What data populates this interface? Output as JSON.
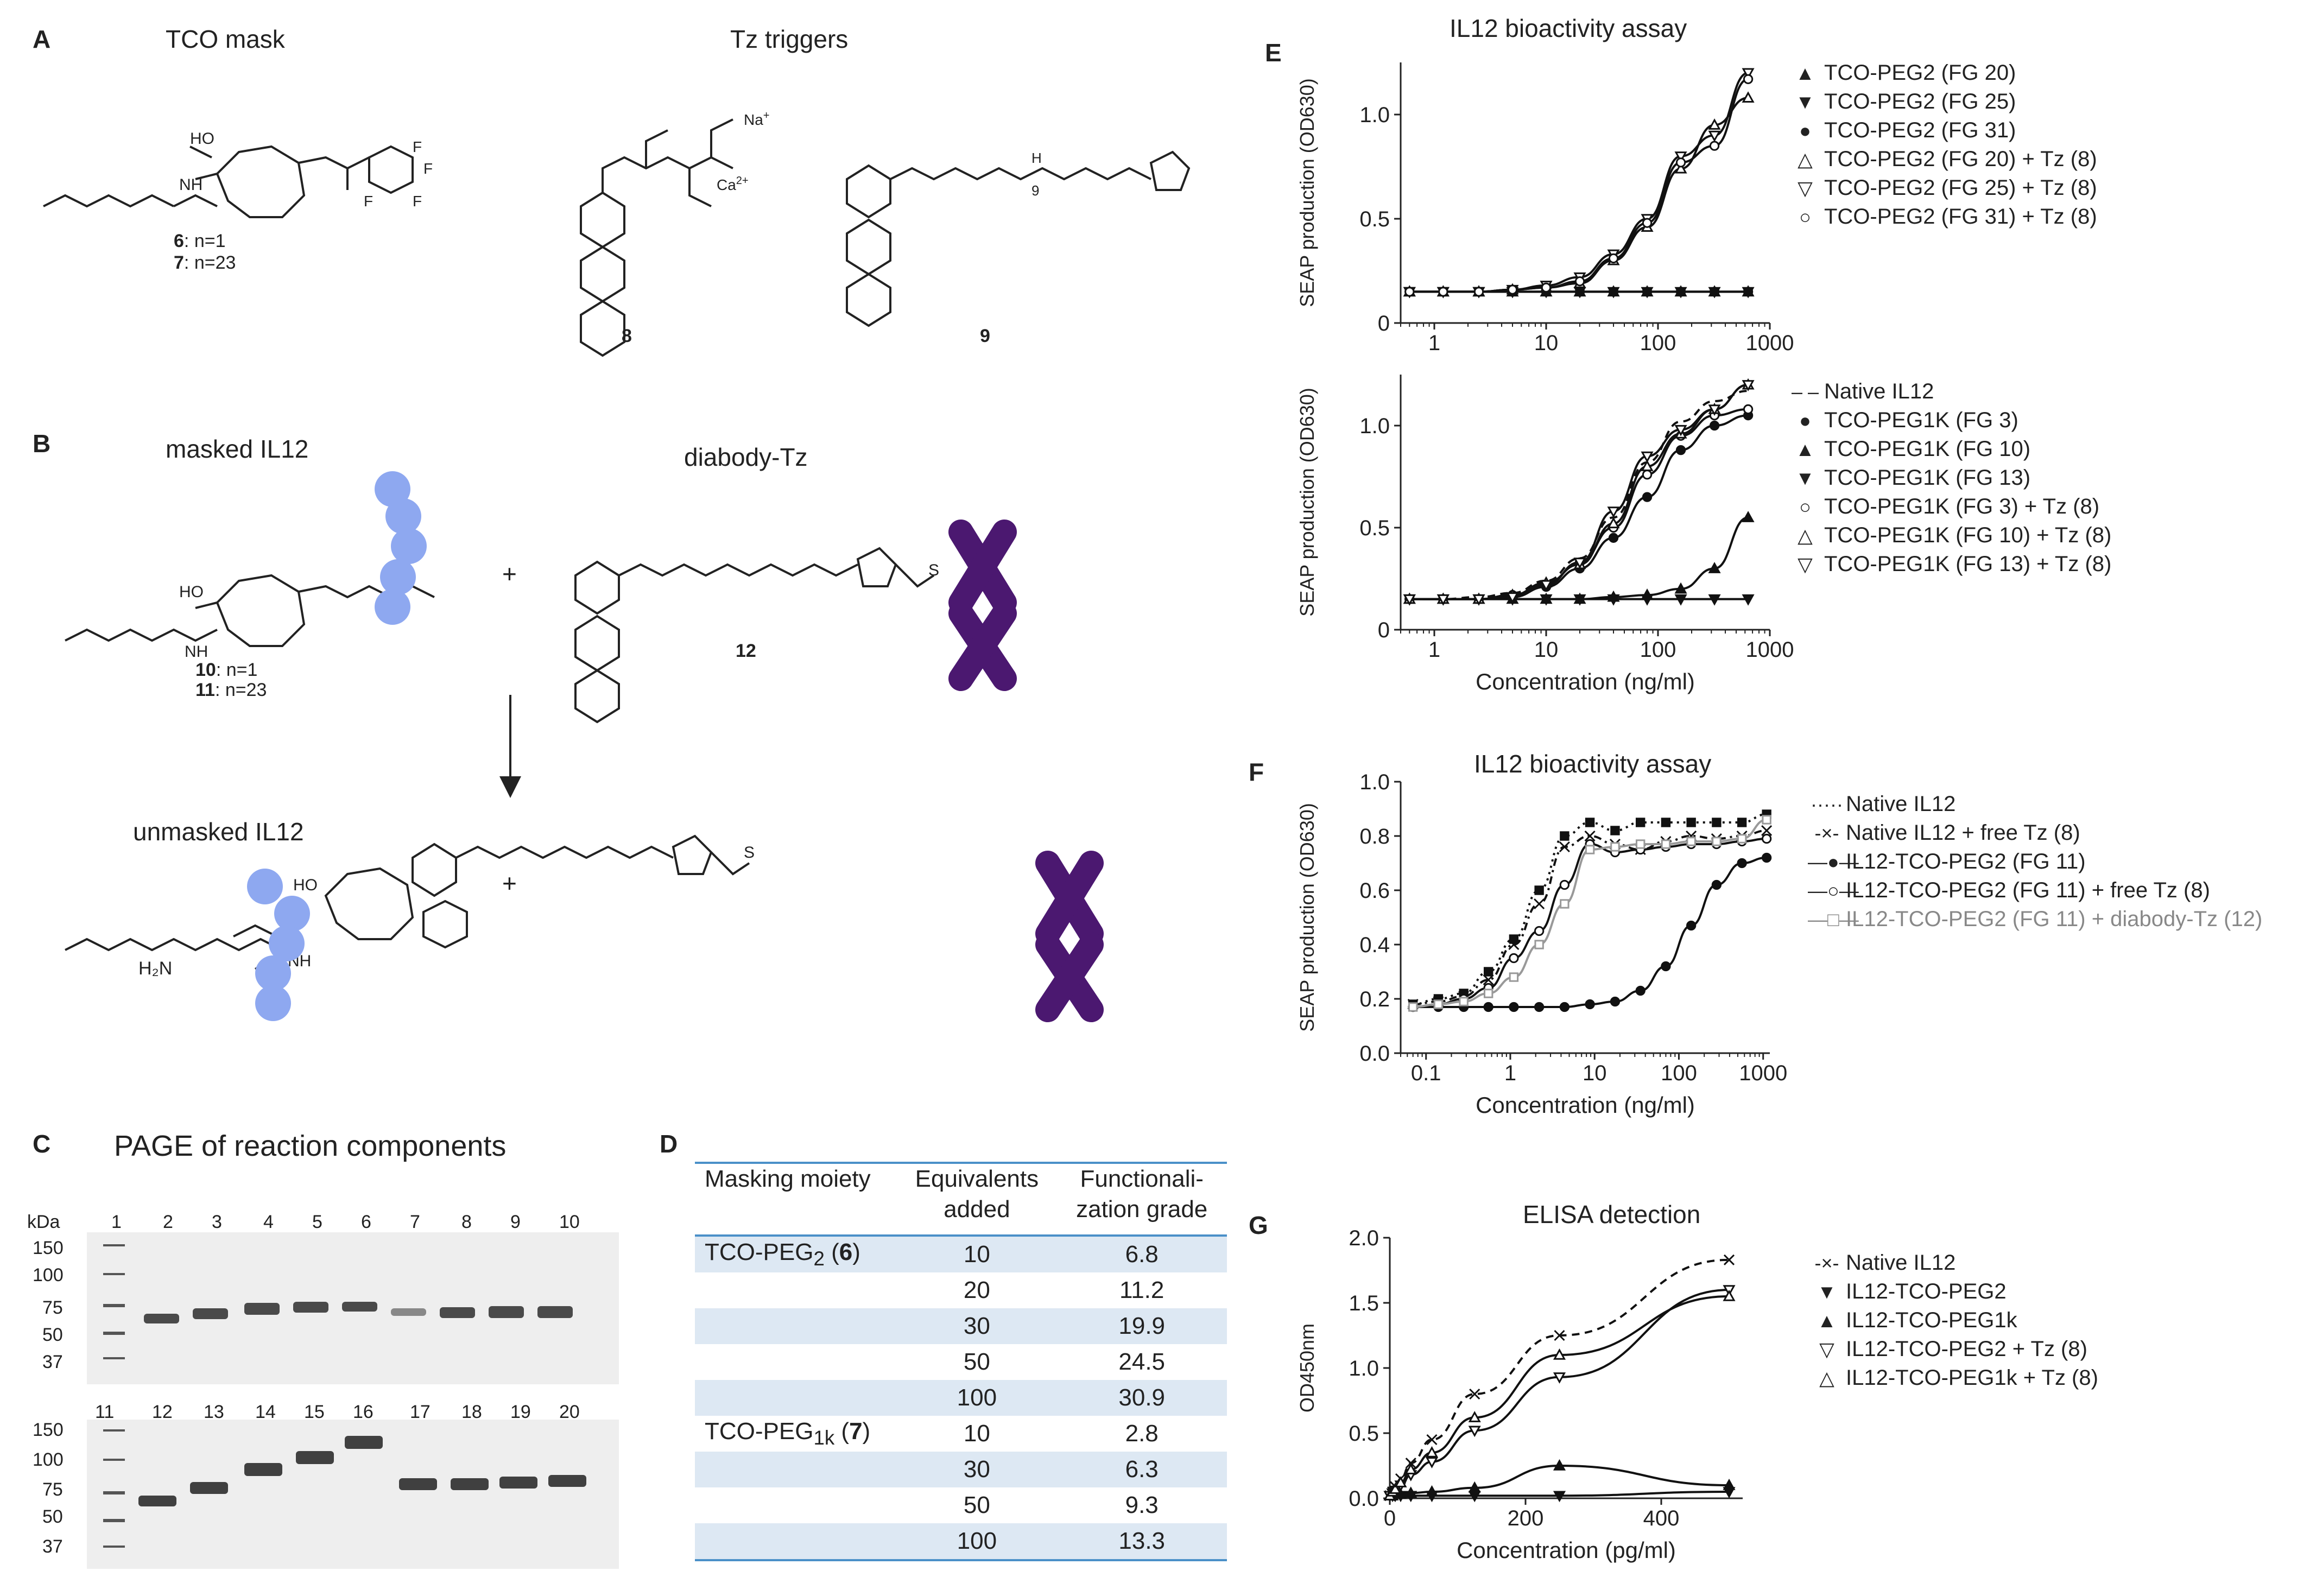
{
  "panels": {
    "A": "A",
    "B": "B",
    "C": "C",
    "D": "D",
    "E": "E",
    "F": "F",
    "G": "G"
  },
  "panelA": {
    "title1": "TCO mask",
    "title2": "Tz triggers",
    "compound1": "6",
    "compound1_n": ": n=1",
    "compound2": "7",
    "compound2_n": ": n=23",
    "compound8": "8",
    "compound9": "9",
    "na": "Na",
    "ca": "Ca"
  },
  "panelB": {
    "title_masked": "masked IL12",
    "title_diabody": "diabody-Tz",
    "title_unmasked": "unmasked IL12",
    "compound10": "10",
    "compound10_n": ": n=1",
    "compound11": "11",
    "compound11_n": ": n=23",
    "compound12": "12",
    "plus": "+",
    "h2n": "H₂N"
  },
  "panelC": {
    "title": "PAGE of reaction components",
    "kda": "kDa",
    "ladder_top": [
      "150",
      "100",
      "75",
      "50",
      "37"
    ],
    "ladder_bottom": [
      "150",
      "100",
      "75",
      "50",
      "37"
    ],
    "lanes_top": [
      "1",
      "2",
      "3",
      "4",
      "5",
      "6",
      "7",
      "8",
      "9",
      "10"
    ],
    "lanes_bottom": [
      "11",
      "12",
      "13",
      "14",
      "15",
      "16",
      "17",
      "18",
      "19",
      "20"
    ]
  },
  "panelD": {
    "headers": [
      "Masking moiety",
      "Equivalents added",
      "Functionali-zation grade"
    ],
    "rows": [
      {
        "moiety": "TCO-PEG2 (6)",
        "eq": "10",
        "fg": "6.8"
      },
      {
        "moiety": "",
        "eq": "20",
        "fg": "11.2"
      },
      {
        "moiety": "",
        "eq": "30",
        "fg": "19.9"
      },
      {
        "moiety": "",
        "eq": "50",
        "fg": "24.5"
      },
      {
        "moiety": "",
        "eq": "100",
        "fg": "30.9"
      },
      {
        "moiety": "TCO-PEG1k (7)",
        "eq": "10",
        "fg": "2.8"
      },
      {
        "moiety": "",
        "eq": "30",
        "fg": "6.3"
      },
      {
        "moiety": "",
        "eq": "50",
        "fg": "9.3"
      },
      {
        "moiety": "",
        "eq": "100",
        "fg": "13.3"
      }
    ]
  },
  "chart_data": [
    {
      "id": "E-top",
      "type": "line",
      "title": "IL12 bioactivity assay",
      "xlabel": "",
      "ylabel": "SEAP production (OD630)",
      "xscale": "log",
      "xlim": [
        0.5,
        1000
      ],
      "ylim": [
        0,
        1.25
      ],
      "xticks": [
        "1",
        "10",
        "100",
        "1000"
      ],
      "yticks": [
        "0",
        "0.5",
        "1.0"
      ],
      "series": [
        {
          "name": "TCO-PEG2 (FG 20)",
          "marker": "tri-up-filled",
          "x": [
            0.6,
            1.2,
            2.5,
            5,
            10,
            20,
            40,
            80,
            160,
            320,
            640
          ],
          "y": [
            0.15,
            0.15,
            0.15,
            0.15,
            0.15,
            0.15,
            0.15,
            0.15,
            0.15,
            0.15,
            0.15
          ]
        },
        {
          "name": "TCO-PEG2 (FG 25)",
          "marker": "tri-down-filled",
          "x": [
            0.6,
            1.2,
            2.5,
            5,
            10,
            20,
            40,
            80,
            160,
            320,
            640
          ],
          "y": [
            0.15,
            0.15,
            0.15,
            0.15,
            0.15,
            0.15,
            0.15,
            0.15,
            0.15,
            0.15,
            0.15
          ]
        },
        {
          "name": "TCO-PEG2 (FG 31)",
          "marker": "circle-filled",
          "x": [
            0.6,
            1.2,
            2.5,
            5,
            10,
            20,
            40,
            80,
            160,
            320,
            640
          ],
          "y": [
            0.15,
            0.15,
            0.15,
            0.15,
            0.15,
            0.15,
            0.15,
            0.15,
            0.15,
            0.15,
            0.15
          ]
        },
        {
          "name": "TCO-PEG2 (FG 20) + Tz (8)",
          "marker": "tri-up-open",
          "x": [
            0.6,
            1.2,
            2.5,
            5,
            10,
            20,
            40,
            80,
            160,
            320,
            640
          ],
          "y": [
            0.15,
            0.15,
            0.15,
            0.16,
            0.17,
            0.19,
            0.3,
            0.46,
            0.74,
            0.95,
            1.08
          ]
        },
        {
          "name": "TCO-PEG2 (FG 25) + Tz (8)",
          "marker": "tri-down-open",
          "x": [
            0.6,
            1.2,
            2.5,
            5,
            10,
            20,
            40,
            80,
            160,
            320,
            640
          ],
          "y": [
            0.15,
            0.15,
            0.15,
            0.16,
            0.18,
            0.22,
            0.33,
            0.5,
            0.8,
            0.9,
            1.2
          ]
        },
        {
          "name": "TCO-PEG2 (FG 31) + Tz (8)",
          "marker": "circle-open",
          "x": [
            0.6,
            1.2,
            2.5,
            5,
            10,
            20,
            40,
            80,
            160,
            320,
            640
          ],
          "y": [
            0.15,
            0.15,
            0.15,
            0.16,
            0.17,
            0.2,
            0.31,
            0.48,
            0.77,
            0.85,
            1.17
          ]
        }
      ]
    },
    {
      "id": "E-bottom",
      "type": "line",
      "title": "",
      "xlabel": "Concentration (ng/ml)",
      "ylabel": "SEAP production (OD630)",
      "xscale": "log",
      "xlim": [
        0.5,
        1000
      ],
      "ylim": [
        0,
        1.25
      ],
      "xticks": [
        "1",
        "10",
        "100",
        "1000"
      ],
      "yticks": [
        "0",
        "0.5",
        "1.0"
      ],
      "series": [
        {
          "name": "Native IL12",
          "marker": "none",
          "dash": "dashed",
          "x": [
            0.6,
            1.2,
            2.5,
            5,
            10,
            20,
            40,
            80,
            160,
            320,
            640
          ],
          "y": [
            0.15,
            0.15,
            0.16,
            0.18,
            0.24,
            0.35,
            0.55,
            0.82,
            1.02,
            1.12,
            1.17
          ]
        },
        {
          "name": "TCO-PEG1K (FG 3)",
          "marker": "circle-filled",
          "x": [
            0.6,
            1.2,
            2.5,
            5,
            10,
            20,
            40,
            80,
            160,
            320,
            640
          ],
          "y": [
            0.15,
            0.15,
            0.15,
            0.16,
            0.21,
            0.3,
            0.45,
            0.65,
            0.88,
            1.0,
            1.05
          ]
        },
        {
          "name": "TCO-PEG1K (FG 10)",
          "marker": "tri-up-filled",
          "x": [
            0.6,
            1.2,
            2.5,
            5,
            10,
            20,
            40,
            80,
            160,
            320,
            640
          ],
          "y": [
            0.15,
            0.15,
            0.15,
            0.15,
            0.15,
            0.15,
            0.16,
            0.17,
            0.2,
            0.3,
            0.55
          ]
        },
        {
          "name": "TCO-PEG1K (FG 13)",
          "marker": "tri-down-filled",
          "x": [
            0.6,
            1.2,
            2.5,
            5,
            10,
            20,
            40,
            80,
            160,
            320,
            640
          ],
          "y": [
            0.15,
            0.15,
            0.15,
            0.15,
            0.15,
            0.15,
            0.15,
            0.15,
            0.15,
            0.15,
            0.15
          ]
        },
        {
          "name": "TCO-PEG1K (FG 3) + Tz (8)",
          "marker": "circle-open",
          "x": [
            0.6,
            1.2,
            2.5,
            5,
            10,
            20,
            40,
            80,
            160,
            320,
            640
          ],
          "y": [
            0.15,
            0.15,
            0.15,
            0.17,
            0.22,
            0.33,
            0.5,
            0.76,
            0.95,
            1.05,
            1.08
          ]
        },
        {
          "name": "TCO-PEG1K (FG 10) + Tz (8)",
          "marker": "tri-up-open",
          "x": [
            0.6,
            1.2,
            2.5,
            5,
            10,
            20,
            40,
            80,
            160,
            320,
            640
          ],
          "y": [
            0.15,
            0.15,
            0.15,
            0.17,
            0.23,
            0.32,
            0.52,
            0.8,
            0.96,
            1.08,
            1.2
          ]
        },
        {
          "name": "TCO-PEG1K (FG 13) + Tz (8)",
          "marker": "tri-down-open",
          "x": [
            0.6,
            1.2,
            2.5,
            5,
            10,
            20,
            40,
            80,
            160,
            320,
            640
          ],
          "y": [
            0.15,
            0.15,
            0.15,
            0.16,
            0.22,
            0.33,
            0.58,
            0.85,
            0.98,
            1.08,
            1.2
          ]
        }
      ]
    },
    {
      "id": "F",
      "type": "line",
      "title": "IL12 bioactivity assay",
      "xlabel": "Concentration (ng/ml)",
      "ylabel": "SEAP production (OD630)",
      "xscale": "log",
      "xlim": [
        0.05,
        1200
      ],
      "ylim": [
        0,
        1.0
      ],
      "xticks": [
        "0.1",
        "1",
        "10",
        "100",
        "1000"
      ],
      "yticks": [
        "0.0",
        "0.2",
        "0.4",
        "0.6",
        "0.8",
        "1.0"
      ],
      "series": [
        {
          "name": "Native IL12",
          "marker": "square-filled",
          "dash": "dotted",
          "x": [
            0.07,
            0.14,
            0.28,
            0.55,
            1.1,
            2.2,
            4.4,
            8.8,
            17.5,
            35,
            70,
            140,
            280,
            560,
            1100
          ],
          "y": [
            0.18,
            0.2,
            0.22,
            0.3,
            0.42,
            0.6,
            0.8,
            0.85,
            0.82,
            0.85,
            0.85,
            0.85,
            0.85,
            0.85,
            0.88
          ]
        },
        {
          "name": "Native IL12 + free Tz (8)",
          "marker": "cross",
          "dash": "dashdot",
          "x": [
            0.07,
            0.14,
            0.28,
            0.55,
            1.1,
            2.2,
            4.4,
            8.8,
            17.5,
            35,
            70,
            140,
            280,
            560,
            1100
          ],
          "y": [
            0.18,
            0.19,
            0.21,
            0.27,
            0.4,
            0.55,
            0.76,
            0.8,
            0.77,
            0.75,
            0.78,
            0.8,
            0.79,
            0.8,
            0.82
          ]
        },
        {
          "name": "IL12-TCO-PEG2 (FG 11)",
          "marker": "circle-filled",
          "x": [
            0.07,
            0.14,
            0.28,
            0.55,
            1.1,
            2.2,
            4.4,
            8.8,
            17.5,
            35,
            70,
            140,
            280,
            560,
            1100
          ],
          "y": [
            0.17,
            0.17,
            0.17,
            0.17,
            0.17,
            0.17,
            0.17,
            0.18,
            0.19,
            0.23,
            0.32,
            0.47,
            0.62,
            0.7,
            0.72
          ]
        },
        {
          "name": "IL12-TCO-PEG2 (FG 11) + free Tz (8)",
          "marker": "circle-open",
          "x": [
            0.07,
            0.14,
            0.28,
            0.55,
            1.1,
            2.2,
            4.4,
            8.8,
            17.5,
            35,
            70,
            140,
            280,
            560,
            1100
          ],
          "y": [
            0.17,
            0.18,
            0.2,
            0.24,
            0.35,
            0.45,
            0.62,
            0.77,
            0.74,
            0.75,
            0.76,
            0.77,
            0.77,
            0.78,
            0.79
          ]
        },
        {
          "name": "IL12-TCO-PEG2 (FG 11) + diabody-Tz (12)",
          "marker": "square-open",
          "color": "#999999",
          "x": [
            0.07,
            0.14,
            0.28,
            0.55,
            1.1,
            2.2,
            4.4,
            8.8,
            17.5,
            35,
            70,
            140,
            280,
            560,
            1100
          ],
          "y": [
            0.17,
            0.18,
            0.19,
            0.22,
            0.28,
            0.4,
            0.55,
            0.75,
            0.76,
            0.77,
            0.77,
            0.78,
            0.78,
            0.79,
            0.86
          ]
        }
      ]
    },
    {
      "id": "G",
      "type": "line",
      "title": "ELISA detection",
      "xlabel": "Concentration (pg/ml)",
      "ylabel": "OD450nm",
      "xscale": "linear",
      "xlim": [
        0,
        520
      ],
      "ylim": [
        0,
        2.0
      ],
      "xticks": [
        "0",
        "200",
        "400"
      ],
      "yticks": [
        "0.0",
        "0.5",
        "1.0",
        "1.5",
        "2.0"
      ],
      "series": [
        {
          "name": "Native IL12",
          "marker": "cross",
          "dash": "dashed",
          "x": [
            0,
            4,
            8,
            16,
            31,
            62,
            125,
            250,
            500
          ],
          "y": [
            0.02,
            0.05,
            0.09,
            0.15,
            0.27,
            0.45,
            0.8,
            1.25,
            1.83
          ]
        },
        {
          "name": "IL12-TCO-PEG2",
          "marker": "tri-down-filled",
          "x": [
            0,
            4,
            8,
            16,
            31,
            62,
            125,
            250,
            500
          ],
          "y": [
            0.02,
            0.02,
            0.02,
            0.02,
            0.02,
            0.02,
            0.02,
            0.02,
            0.05
          ]
        },
        {
          "name": "IL12-TCO-PEG1k",
          "marker": "tri-up-filled",
          "x": [
            0,
            4,
            8,
            16,
            31,
            62,
            125,
            250,
            500
          ],
          "y": [
            0.02,
            0.02,
            0.03,
            0.03,
            0.04,
            0.05,
            0.08,
            0.25,
            0.1
          ]
        },
        {
          "name": "IL12-TCO-PEG2 + Tz (8)",
          "marker": "tri-down-open",
          "x": [
            0,
            4,
            8,
            16,
            31,
            62,
            125,
            250,
            500
          ],
          "y": [
            0.02,
            0.04,
            0.06,
            0.1,
            0.18,
            0.28,
            0.52,
            0.93,
            1.6
          ]
        },
        {
          "name": "IL12-TCO-PEG1k + Tz (8)",
          "marker": "tri-up-open",
          "x": [
            0,
            4,
            8,
            16,
            31,
            62,
            125,
            250,
            500
          ],
          "y": [
            0.02,
            0.05,
            0.07,
            0.12,
            0.22,
            0.35,
            0.62,
            1.1,
            1.55
          ]
        }
      ]
    }
  ],
  "legends": {
    "E_top": [
      "TCO-PEG2 (FG 20)",
      "TCO-PEG2 (FG 25)",
      "TCO-PEG2 (FG 31)",
      "TCO-PEG2 (FG 20) + Tz (8)",
      "TCO-PEG2 (FG 25) + Tz (8)",
      "TCO-PEG2 (FG 31) + Tz (8)"
    ],
    "E_bottom": [
      "Native IL12",
      "TCO-PEG1K (FG 3)",
      "TCO-PEG1K (FG 10)",
      "TCO-PEG1K (FG 13)",
      "TCO-PEG1K (FG 3) + Tz (8)",
      "TCO-PEG1K (FG 10) + Tz (8)",
      "TCO-PEG1K (FG 13) + Tz (8)"
    ],
    "F": [
      "Native IL12",
      "Native IL12 + free Tz (8)",
      "IL12-TCO-PEG2 (FG 11)",
      "IL12-TCO-PEG2 (FG 11) + free Tz (8)",
      "IL12-TCO-PEG2 (FG 11) + diabody-Tz (12)"
    ],
    "G": [
      "Native IL12",
      "IL12-TCO-PEG2",
      "IL12-TCO-PEG1k",
      "IL12-TCO-PEG2 + Tz (8)",
      "IL12-TCO-PEG1k + Tz (8)"
    ]
  },
  "colors": {
    "blob": "#8ea8f0",
    "diabody": "#4b1870",
    "table_rule": "#4a90c8",
    "table_shade": "#dde8f3",
    "gray_series": "#999999"
  }
}
